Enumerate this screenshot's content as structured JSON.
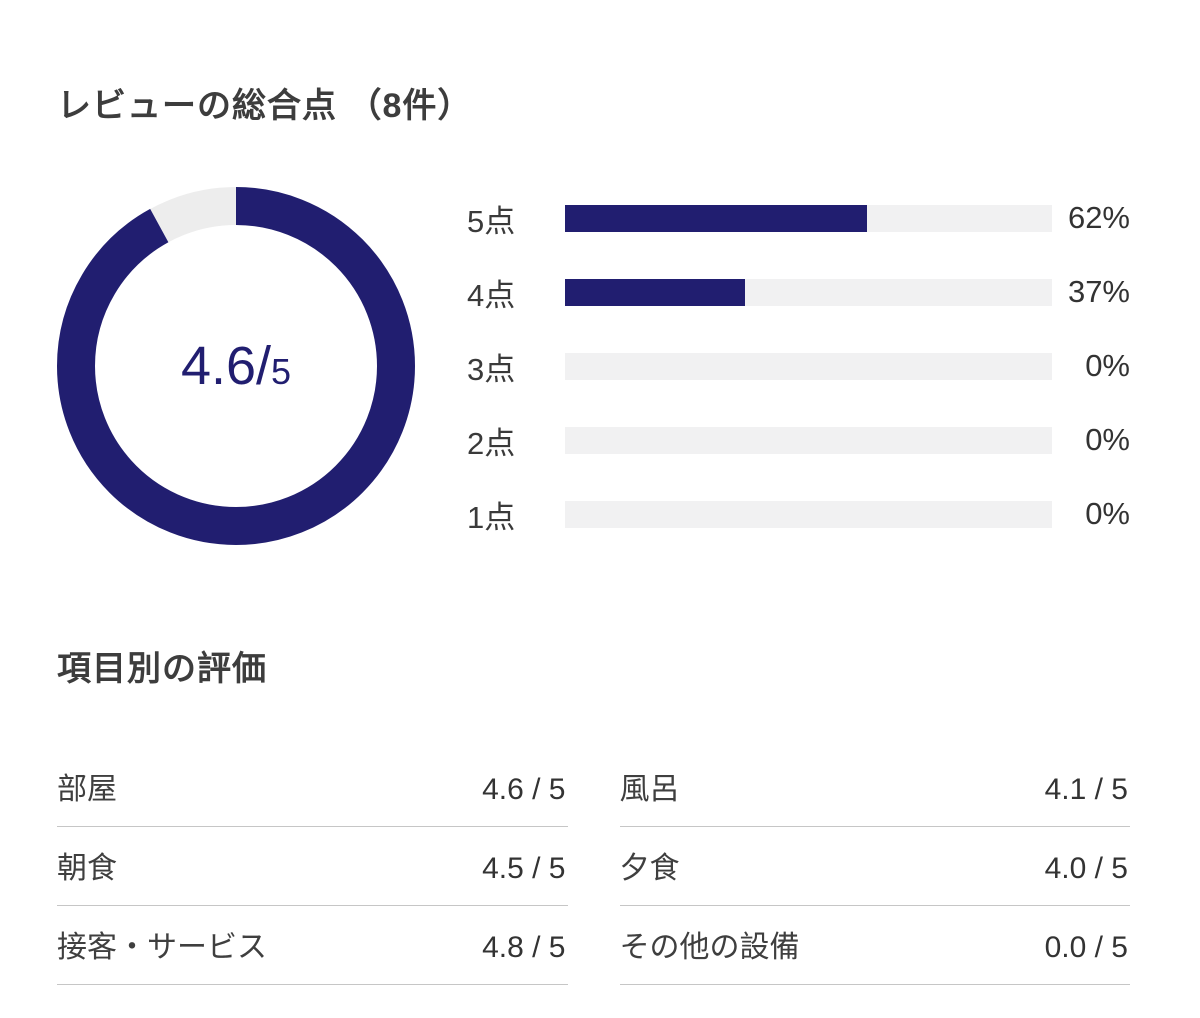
{
  "colors": {
    "accent": "#211e70",
    "bar_track": "#f1f1f2",
    "donut_track": "#ededed"
  },
  "review_summary": {
    "title": "レビューの総合点 （8件）",
    "donut": {
      "score": "4.6",
      "separator": "/",
      "out_of": "5",
      "fraction": 0.92
    },
    "distribution": [
      {
        "label": "5点",
        "percent": 62,
        "percent_label": "62%"
      },
      {
        "label": "4点",
        "percent": 37,
        "percent_label": "37%"
      },
      {
        "label": "3点",
        "percent": 0,
        "percent_label": "0%"
      },
      {
        "label": "2点",
        "percent": 0,
        "percent_label": "0%"
      },
      {
        "label": "1点",
        "percent": 0,
        "percent_label": "0%"
      }
    ]
  },
  "category_ratings": {
    "title": "項目別の評価",
    "left_column": [
      {
        "label": "部屋",
        "value": "4.6 / 5"
      },
      {
        "label": "朝食",
        "value": "4.5 / 5"
      },
      {
        "label": "接客・サービス",
        "value": "4.8 / 5"
      }
    ],
    "right_column": [
      {
        "label": "風呂",
        "value": "4.1 / 5"
      },
      {
        "label": "夕食",
        "value": "4.0 / 5"
      },
      {
        "label": "その他の設備",
        "value": "0.0 / 5"
      }
    ]
  },
  "chart_data": [
    {
      "type": "pie",
      "subtype": "donut",
      "title": "レビューの総合点 （8件）",
      "center_label": "4.6/5",
      "values": [
        {
          "label": "score",
          "value": 4.6
        },
        {
          "label": "remainder",
          "value": 0.4
        }
      ],
      "max": 5,
      "fill_color": "#211e70",
      "track_color": "#ededed"
    },
    {
      "type": "bar",
      "orientation": "horizontal",
      "categories": [
        "5点",
        "4点",
        "3点",
        "2点",
        "1点"
      ],
      "values": [
        62,
        37,
        0,
        0,
        0
      ],
      "unit": "%",
      "xlim": [
        0,
        100
      ],
      "bar_color": "#211e70",
      "track_color": "#f1f1f2"
    },
    {
      "type": "table",
      "title": "項目別の評価",
      "rows": [
        {
          "label": "部屋",
          "value": 4.6,
          "max": 5
        },
        {
          "label": "朝食",
          "value": 4.5,
          "max": 5
        },
        {
          "label": "接客・サービス",
          "value": 4.8,
          "max": 5
        },
        {
          "label": "風呂",
          "value": 4.1,
          "max": 5
        },
        {
          "label": "夕食",
          "value": 4.0,
          "max": 5
        },
        {
          "label": "その他の設備",
          "value": 0.0,
          "max": 5
        }
      ]
    }
  ]
}
